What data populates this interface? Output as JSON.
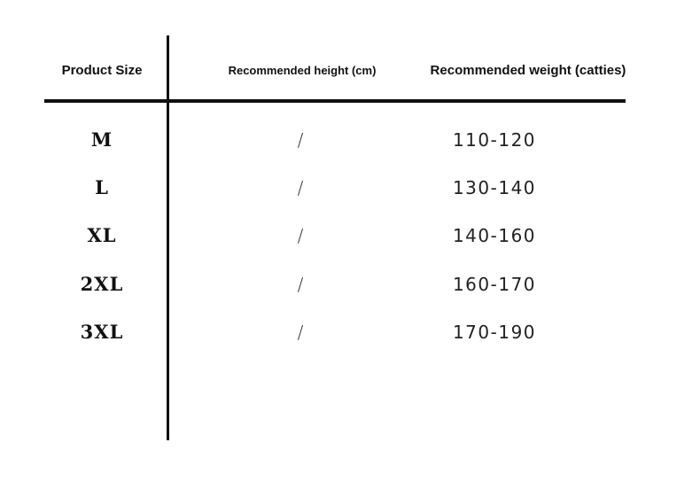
{
  "headers": {
    "size": "Product Size",
    "height": "Recommended height (cm)",
    "weight": "Recommended weight (catties)"
  },
  "rows": [
    {
      "size": "M",
      "height": "/",
      "weight": "110-120"
    },
    {
      "size": "L",
      "height": "/",
      "weight": "130-140"
    },
    {
      "size": "XL",
      "height": "/",
      "weight": "140-160"
    },
    {
      "size": "2XL",
      "height": "/",
      "weight": "160-170"
    },
    {
      "size": "3XL",
      "height": "/",
      "weight": "170-190"
    }
  ]
}
